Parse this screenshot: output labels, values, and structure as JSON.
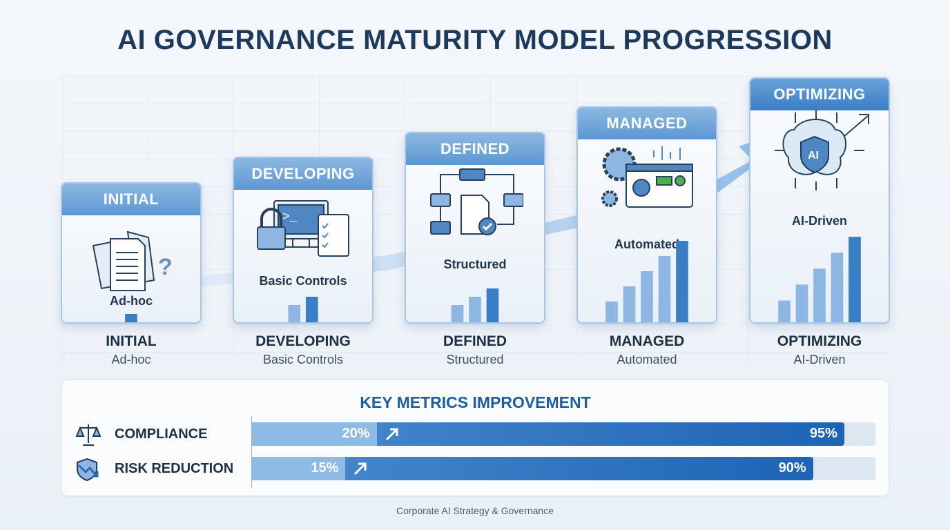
{
  "title": "AI GOVERNANCE MATURITY MODEL PROGRESSION",
  "stages": [
    {
      "header": "INITIAL",
      "caption": "Ad-hoc",
      "label": "INITIAL",
      "sublabel": "Ad-hoc",
      "icon": "scattered-documents-question-icon",
      "bar_count": 1
    },
    {
      "header": "DEVELOPING",
      "caption": "Basic Controls",
      "label": "DEVELOPING",
      "sublabel": "Basic Controls",
      "icon": "lock-monitor-checklist-icon",
      "bar_count": 2
    },
    {
      "header": "DEFINED",
      "caption": "Structured",
      "label": "DEFINED",
      "sublabel": "Structured",
      "icon": "process-flow-document-icon",
      "bar_count": 3
    },
    {
      "header": "MANAGED",
      "caption": "Automated",
      "label": "MANAGED",
      "sublabel": "Automated",
      "icon": "gears-dashboard-icon",
      "bar_count": 5
    },
    {
      "header": "OPTIMIZING",
      "caption": "AI-Driven",
      "label": "OPTIMIZING",
      "sublabel": "AI-Driven",
      "icon": "ai-brain-shield-icon",
      "bar_count": 5
    }
  ],
  "metrics": {
    "title": "KEY METRICS IMPROVEMENT",
    "rows": [
      {
        "name": "COMPLIANCE",
        "icon": "scales-icon",
        "start": 20,
        "start_label": "20%",
        "end": 95,
        "end_label": "95%"
      },
      {
        "name": "RISK REDUCTION",
        "icon": "shield-down-arrow-icon",
        "start": 15,
        "start_label": "15%",
        "end": 90,
        "end_label": "90%"
      }
    ]
  },
  "footer": "Corporate AI Strategy & Governance",
  "colors": {
    "accent": "#1d64b5",
    "header_light": "#8cb8e2",
    "title": "#1d3a5c"
  }
}
